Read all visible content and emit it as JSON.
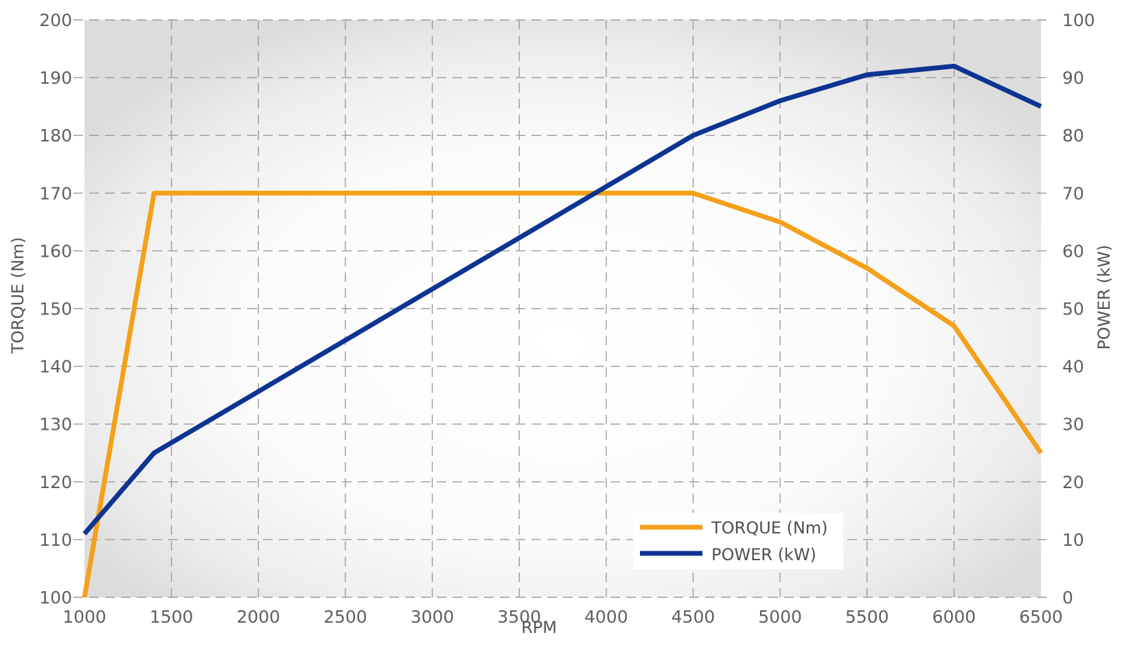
{
  "chart_data": {
    "type": "line",
    "x": [
      1000,
      1400,
      4500,
      5000,
      5500,
      6000,
      6500
    ],
    "xlabel": "RPM",
    "xlim": [
      1000,
      6500
    ],
    "xticks": [
      "1000",
      "1500",
      "2000",
      "2500",
      "3000",
      "3500",
      "4000",
      "4500",
      "5000",
      "5500",
      "6000",
      "6500"
    ],
    "ylabel": "TORQUE (Nm)",
    "ylim": [
      100,
      200
    ],
    "yticks": [
      "100",
      "110",
      "120",
      "130",
      "140",
      "150",
      "160",
      "170",
      "180",
      "190",
      "200"
    ],
    "y2label": "POWER (kW)",
    "y2lim": [
      0,
      100
    ],
    "y2ticks": [
      "0",
      "10",
      "20",
      "30",
      "40",
      "50",
      "60",
      "70",
      "80",
      "90",
      "100"
    ],
    "grid": true,
    "legend": "bottom-right",
    "series": [
      {
        "name": "TORQUE (Nm)",
        "axis": "left",
        "color": "#f5a01a",
        "points": [
          [
            1000,
            100
          ],
          [
            1400,
            170
          ],
          [
            4500,
            170
          ],
          [
            5000,
            165
          ],
          [
            5500,
            157
          ],
          [
            6000,
            147
          ],
          [
            6500,
            125
          ]
        ]
      },
      {
        "name": "POWER (kW)",
        "axis": "right",
        "color": "#0d3492",
        "points": [
          [
            1000,
            11
          ],
          [
            1400,
            25
          ],
          [
            4500,
            80
          ],
          [
            5000,
            86
          ],
          [
            5500,
            90.5
          ],
          [
            6000,
            92
          ],
          [
            6500,
            85
          ]
        ]
      }
    ]
  }
}
